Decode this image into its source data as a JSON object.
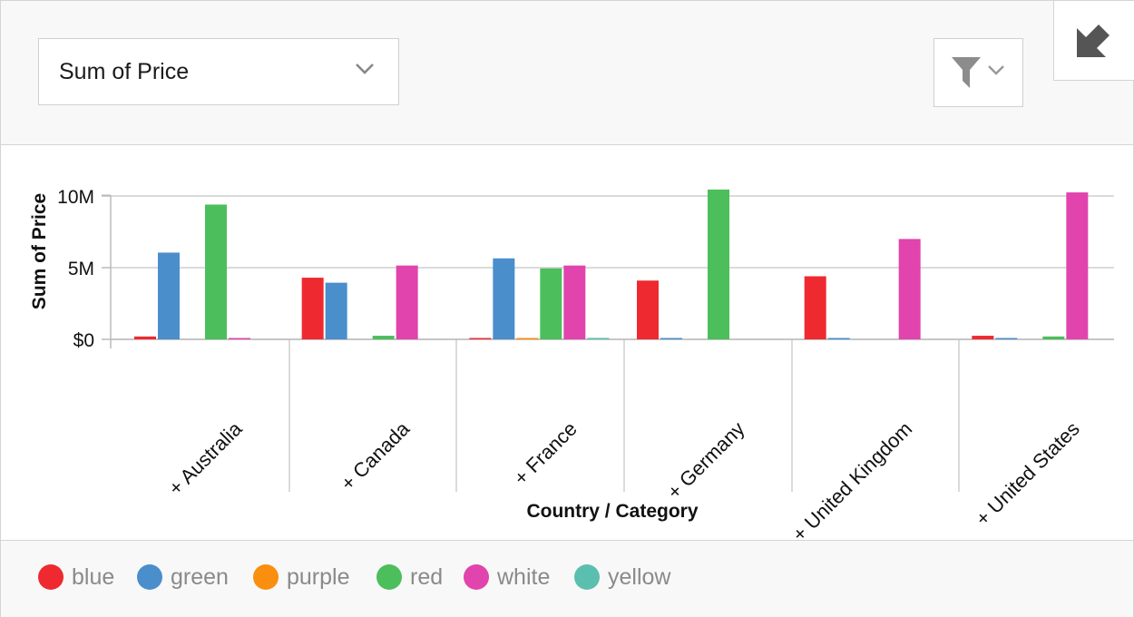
{
  "toolbar": {
    "measure_label": "Sum of Price",
    "icons": {
      "measure_dropdown": "chevron-down-icon",
      "filter": "funnel-icon",
      "filter_dropdown": "chevron-down-icon",
      "collapse": "arrow-down-left-icon"
    }
  },
  "colors": {
    "blue": "#ee2a30",
    "green": "#4a8ecb",
    "purple": "#fa8e0f",
    "red": "#4cbe5c",
    "white": "#e144ac",
    "yellow": "#5bbfaf"
  },
  "legend": [
    {
      "label": "blue",
      "color": "#ee2a30"
    },
    {
      "label": "green",
      "color": "#4a8ecb"
    },
    {
      "label": "purple",
      "color": "#fa8e0f"
    },
    {
      "label": "red",
      "color": "#4cbe5c"
    },
    {
      "label": "white",
      "color": "#e144ac"
    },
    {
      "label": "yellow",
      "color": "#5bbfaf"
    }
  ],
  "chart_data": {
    "type": "bar",
    "xlabel": "Country / Category",
    "ylabel": "Sum of Price",
    "ylim": [
      0,
      11000000
    ],
    "yticks": [
      {
        "value": 0,
        "label": "$0"
      },
      {
        "value": 5000000,
        "label": "5M"
      },
      {
        "value": 10000000,
        "label": "10M"
      }
    ],
    "grid": true,
    "legend_position": "bottom",
    "categories": [
      "+ Australia",
      "+ Canada",
      "+ France",
      "+ Germany",
      "+ United Kingdom",
      "+ United States"
    ],
    "series": [
      {
        "name": "blue",
        "values": [
          200000,
          4300000,
          60000,
          4100000,
          4400000,
          250000
        ]
      },
      {
        "name": "green",
        "values": [
          6050000,
          3950000,
          5650000,
          30000,
          30000,
          30000
        ]
      },
      {
        "name": "purple",
        "values": [
          0,
          0,
          40000,
          0,
          0,
          0
        ]
      },
      {
        "name": "red",
        "values": [
          9400000,
          250000,
          4950000,
          10450000,
          0,
          200000
        ]
      },
      {
        "name": "white",
        "values": [
          50000,
          5150000,
          5150000,
          0,
          7000000,
          10250000
        ]
      },
      {
        "name": "yellow",
        "values": [
          0,
          0,
          100000,
          0,
          0,
          0
        ]
      }
    ]
  }
}
